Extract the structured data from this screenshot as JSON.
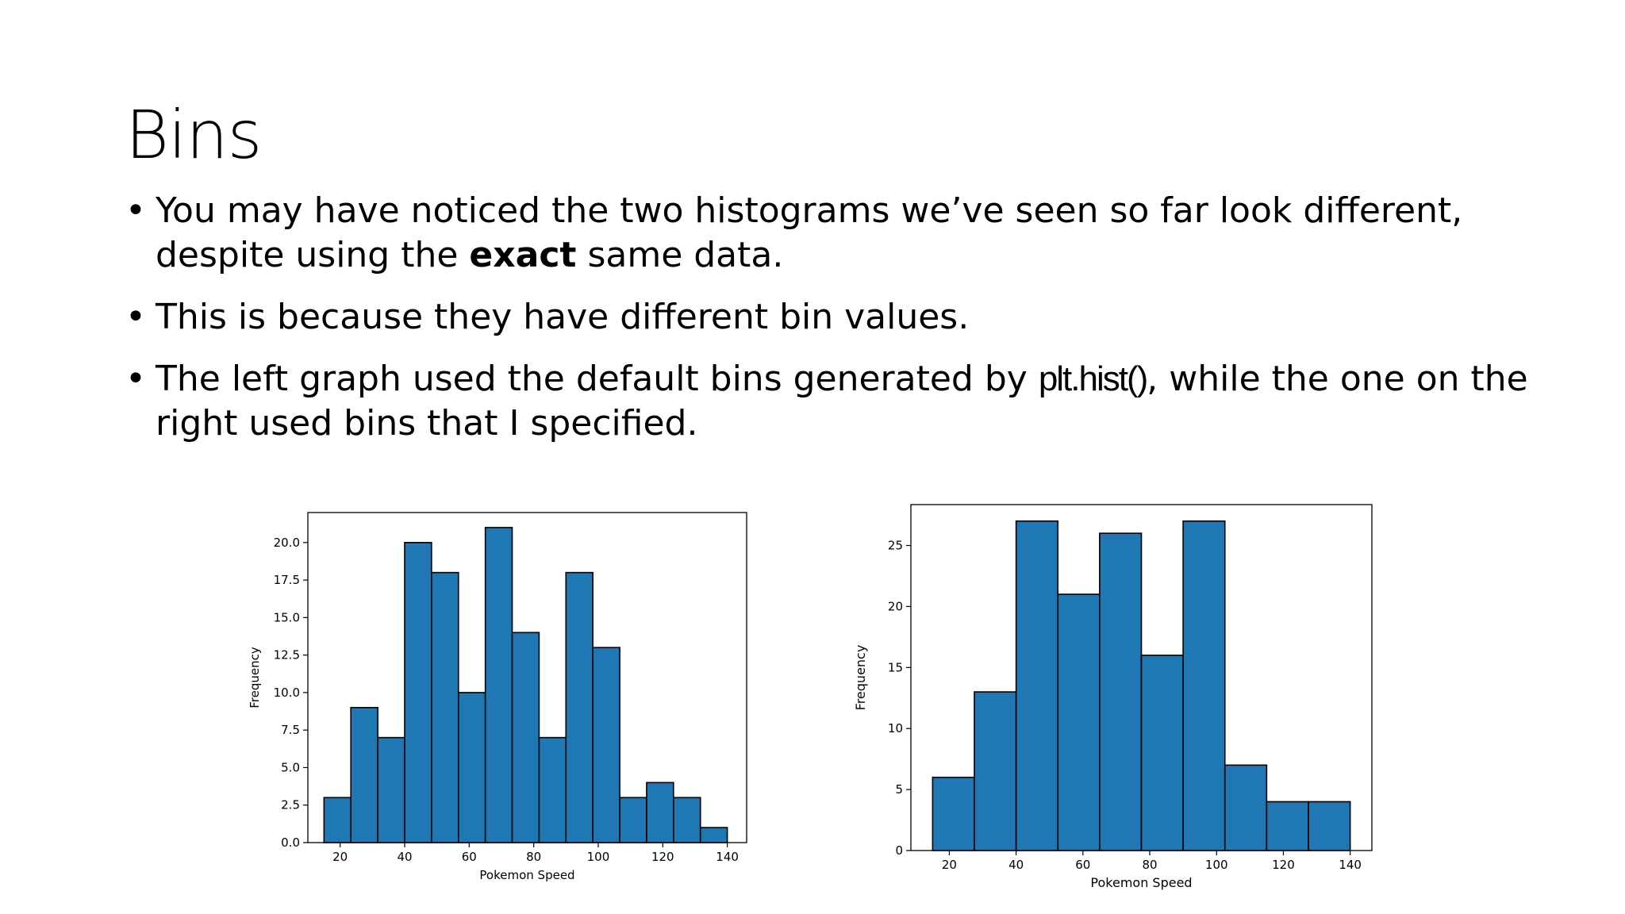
{
  "slide": {
    "title": "Bins",
    "bullets": [
      {
        "before": "You may have noticed the two histograms we’ve seen so far look different, despite using the ",
        "emphasis": "exact",
        "after": " same data."
      },
      {
        "text": "This is because they have different bin values."
      },
      {
        "before": "The left graph used the default bins generated by ",
        "code": "plt.hist()",
        "after": ", while the one on the right used bins that I specified."
      }
    ]
  },
  "chart_data": [
    {
      "type": "bar",
      "xlabel": "Pokemon Speed",
      "ylabel": "Frequency",
      "xlim": [
        10,
        146
      ],
      "ylim": [
        0,
        22
      ],
      "xticks": [
        20,
        40,
        60,
        80,
        100,
        120,
        140
      ],
      "yticks": [
        0.0,
        2.5,
        5.0,
        7.5,
        10.0,
        12.5,
        15.0,
        17.5,
        20.0
      ],
      "ytick_labels": [
        "0.0",
        "2.5",
        "5.0",
        "7.5",
        "10.0",
        "12.5",
        "15.0",
        "17.5",
        "20.0"
      ],
      "bin_edges": [
        15,
        23.33,
        31.67,
        40,
        48.33,
        56.67,
        65,
        73.33,
        81.67,
        90,
        98.33,
        106.67,
        115,
        123.33,
        131.67,
        140
      ],
      "values": [
        3,
        9,
        7,
        20,
        18,
        10,
        21,
        14,
        7,
        18,
        13,
        3,
        4,
        3,
        1
      ],
      "bar_color": "#1f77b4",
      "edge_color": "#000000",
      "grid": false
    },
    {
      "type": "bar",
      "xlabel": "Pokemon Speed",
      "ylabel": "Frequency",
      "xlim": [
        8.5,
        146.5
      ],
      "ylim": [
        0,
        28.35
      ],
      "xticks": [
        20,
        40,
        60,
        80,
        100,
        120,
        140
      ],
      "yticks": [
        0,
        5,
        10,
        15,
        20,
        25
      ],
      "ytick_labels": [
        "0",
        "5",
        "10",
        "15",
        "20",
        "25"
      ],
      "bin_edges": [
        15,
        27.5,
        40,
        52.5,
        65,
        77.5,
        90,
        102.5,
        115,
        127.5,
        140
      ],
      "values": [
        6,
        13,
        27,
        21,
        26,
        16,
        27,
        7,
        4,
        4
      ],
      "bar_color": "#1f77b4",
      "edge_color": "#000000",
      "grid": false
    }
  ]
}
